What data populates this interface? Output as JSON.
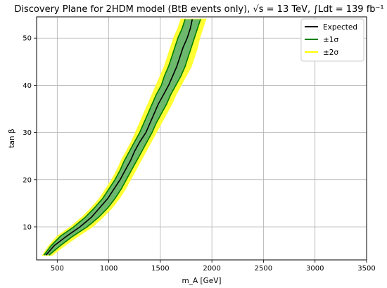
{
  "chart_data": {
    "type": "area",
    "title": "Discovery Plane for 2HDM model (BtB events only), √s = 13 TeV, ∫Ldt = 139 fb⁻¹",
    "xlabel": "m_A [GeV]",
    "ylabel": "tan β",
    "xlim": [
      300,
      3500
    ],
    "ylim": [
      3,
      54.5
    ],
    "xticks": [
      500,
      1000,
      1500,
      2000,
      2500,
      3000,
      3500
    ],
    "yticks": [
      10,
      20,
      30,
      40,
      50
    ],
    "grid": true,
    "legend": {
      "placement": "top-right",
      "entries": [
        {
          "label": "Expected",
          "color": "#000000",
          "style": "line"
        },
        {
          "label": "±1σ",
          "color": "#008000",
          "style": "line"
        },
        {
          "label": "±2σ",
          "color": "#ffff00",
          "style": "line"
        }
      ]
    },
    "colors": {
      "expected": "#000000",
      "band1_fill": "#6cb86c",
      "band1_edge": "#008000",
      "band2_fill": "#ffff33"
    },
    "tanb": [
      4,
      6,
      8,
      10,
      12,
      14,
      16,
      18,
      20,
      22,
      24,
      26,
      28,
      30,
      32,
      34,
      36,
      38,
      40,
      42,
      44,
      46,
      48,
      50,
      52,
      54
    ],
    "expected_mA": [
      390,
      470,
      590,
      720,
      830,
      910,
      990,
      1050,
      1110,
      1160,
      1210,
      1250,
      1300,
      1360,
      1400,
      1440,
      1480,
      1530,
      1580,
      1620,
      1660,
      1690,
      1720,
      1760,
      1790,
      1810
    ],
    "sigma1_low_mA": [
      370,
      440,
      530,
      660,
      770,
      860,
      940,
      1000,
      1060,
      1110,
      1150,
      1200,
      1250,
      1300,
      1340,
      1380,
      1420,
      1460,
      1510,
      1540,
      1580,
      1610,
      1640,
      1670,
      1710,
      1740
    ],
    "sigma1_high_mA": [
      420,
      530,
      650,
      790,
      900,
      990,
      1060,
      1120,
      1170,
      1220,
      1270,
      1320,
      1370,
      1420,
      1460,
      1510,
      1560,
      1600,
      1650,
      1700,
      1740,
      1770,
      1800,
      1830,
      1860,
      1890
    ],
    "sigma2_low_mA": [
      360,
      420,
      500,
      630,
      740,
      830,
      910,
      970,
      1030,
      1080,
      1120,
      1170,
      1220,
      1260,
      1300,
      1340,
      1380,
      1420,
      1460,
      1500,
      1540,
      1570,
      1600,
      1630,
      1670,
      1700
    ],
    "sigma2_high_mA": [
      450,
      570,
      700,
      840,
      940,
      1030,
      1100,
      1160,
      1210,
      1260,
      1310,
      1360,
      1410,
      1460,
      1510,
      1560,
      1610,
      1650,
      1700,
      1750,
      1800,
      1830,
      1860,
      1880,
      1910,
      1940
    ]
  }
}
